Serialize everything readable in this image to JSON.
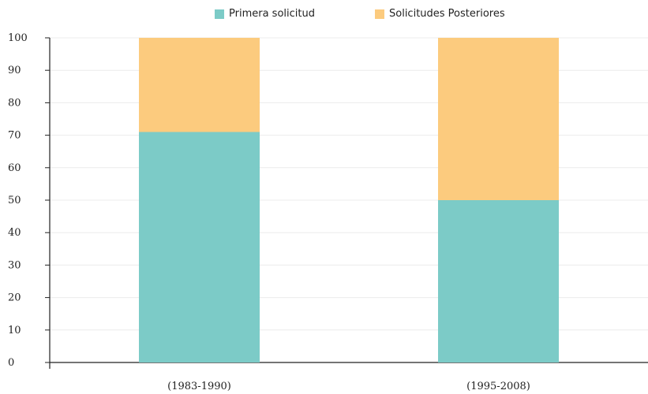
{
  "legend": {
    "items": [
      {
        "label": "Primera solicitud",
        "color": "#7CCBC7"
      },
      {
        "label": "Solicitudes Posteriores",
        "color": "#FCCB7E"
      }
    ]
  },
  "chart_data": {
    "type": "bar",
    "stacked": true,
    "categories": [
      "(1983-1990)",
      "(1995-2008)"
    ],
    "series": [
      {
        "name": "Primera solicitud",
        "values": [
          71,
          50
        ],
        "color": "#7CCBC7"
      },
      {
        "name": "Solicitudes Posteriores",
        "values": [
          29,
          50
        ],
        "color": "#FCCB7E"
      }
    ],
    "title": "",
    "xlabel": "",
    "ylabel": "",
    "ylim": [
      0,
      100
    ],
    "yticks": [
      "0",
      "10",
      "20",
      "30",
      "40",
      "50",
      "60",
      "70",
      "80",
      "90",
      "100"
    ],
    "grid": true,
    "legend_position": "top-center"
  }
}
